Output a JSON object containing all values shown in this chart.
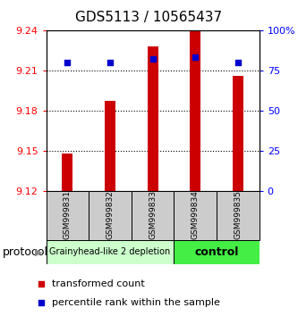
{
  "title": "GDS5113 / 10565437",
  "samples": [
    "GSM999831",
    "GSM999832",
    "GSM999833",
    "GSM999834",
    "GSM999835"
  ],
  "bar_values": [
    9.148,
    9.187,
    9.228,
    9.24,
    9.206
  ],
  "bar_bottom": 9.12,
  "percentile_values": [
    80,
    80,
    82,
    83,
    80
  ],
  "ylim_left": [
    9.12,
    9.24
  ],
  "yticks_left": [
    9.12,
    9.15,
    9.18,
    9.21,
    9.24
  ],
  "ytick_labels_left": [
    "9.12",
    "9.15",
    "9.18",
    "9.21",
    "9.24"
  ],
  "ylim_right": [
    0,
    100
  ],
  "yticks_right": [
    0,
    25,
    50,
    75,
    100
  ],
  "ytick_labels_right": [
    "0",
    "25",
    "50",
    "75",
    "100%"
  ],
  "bar_color": "#cc0000",
  "percentile_color": "#0000cc",
  "group1_samples": [
    0,
    1,
    2
  ],
  "group2_samples": [
    3,
    4
  ],
  "group1_label": "Grainyhead-like 2 depletion",
  "group2_label": "control",
  "group1_color": "#ccffcc",
  "group2_color": "#44ee44",
  "protocol_label": "protocol",
  "legend_red_label": "transformed count",
  "legend_blue_label": "percentile rank within the sample",
  "bar_width": 0.25,
  "title_fontsize": 11,
  "tick_fontsize": 8,
  "sample_fontsize": 6.5,
  "group_fontsize1": 7,
  "group_fontsize2": 9,
  "legend_fontsize": 8,
  "protocol_fontsize": 9
}
